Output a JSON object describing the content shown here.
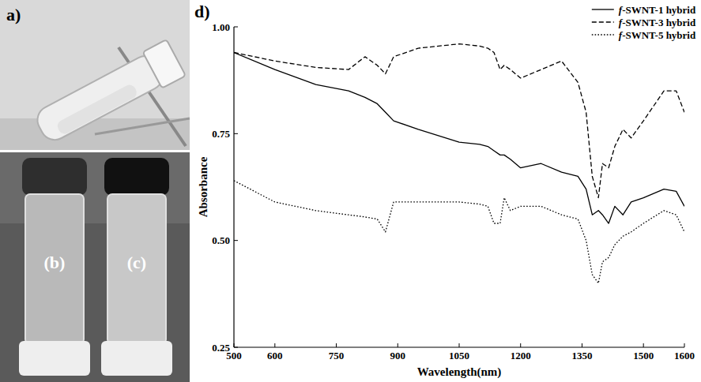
{
  "panels": {
    "a": "a)",
    "b": "(b)",
    "c": "(c)",
    "d": "d)"
  },
  "chart_data": {
    "type": "line",
    "x_label": "Wavelength(nm)",
    "y_label": "Absorbance",
    "legend": "top-right",
    "grid": false,
    "xlim": [
      500,
      1600
    ],
    "xticks": [
      500,
      600,
      750,
      900,
      1050,
      1200,
      1350,
      1500,
      1600
    ],
    "ylim": [
      0.25,
      1.0
    ],
    "yticks": [
      0.25,
      {
        "value": 0.5,
        "label": "0.50"
      },
      0.75,
      {
        "value": 1.0,
        "label": "1.00"
      }
    ],
    "x": [
      500,
      600,
      700,
      780,
      820,
      850,
      870,
      890,
      950,
      1050,
      1100,
      1120,
      1135,
      1150,
      1160,
      1175,
      1200,
      1250,
      1300,
      1340,
      1360,
      1375,
      1390,
      1400,
      1415,
      1430,
      1450,
      1470,
      1500,
      1550,
      1580,
      1600
    ],
    "series": [
      {
        "name": "f-SWNT-1 hybrid",
        "color": "#000000",
        "line_style": "solid",
        "values": [
          0.94,
          0.9,
          0.865,
          0.85,
          0.835,
          0.82,
          0.8,
          0.78,
          0.76,
          0.73,
          0.725,
          0.72,
          0.71,
          0.7,
          0.7,
          0.69,
          0.67,
          0.68,
          0.66,
          0.65,
          0.62,
          0.56,
          0.57,
          0.56,
          0.54,
          0.58,
          0.56,
          0.59,
          0.6,
          0.62,
          0.615,
          0.58
        ]
      },
      {
        "name": "f-SWNT-3 hybrid",
        "color": "#000000",
        "line_style": "dashed",
        "values": [
          0.94,
          0.92,
          0.905,
          0.9,
          0.93,
          0.91,
          0.89,
          0.93,
          0.95,
          0.96,
          0.955,
          0.95,
          0.94,
          0.9,
          0.91,
          0.9,
          0.88,
          0.9,
          0.92,
          0.87,
          0.8,
          0.65,
          0.6,
          0.68,
          0.67,
          0.72,
          0.76,
          0.74,
          0.78,
          0.85,
          0.85,
          0.8
        ]
      },
      {
        "name": "f-SWNT-5 hybrid",
        "color": "#000000",
        "line_style": "dotted",
        "values": [
          0.64,
          0.59,
          0.57,
          0.56,
          0.555,
          0.55,
          0.52,
          0.59,
          0.59,
          0.59,
          0.585,
          0.58,
          0.54,
          0.54,
          0.6,
          0.57,
          0.58,
          0.58,
          0.56,
          0.55,
          0.5,
          0.42,
          0.4,
          0.45,
          0.46,
          0.49,
          0.51,
          0.52,
          0.54,
          0.57,
          0.56,
          0.52
        ]
      }
    ]
  }
}
